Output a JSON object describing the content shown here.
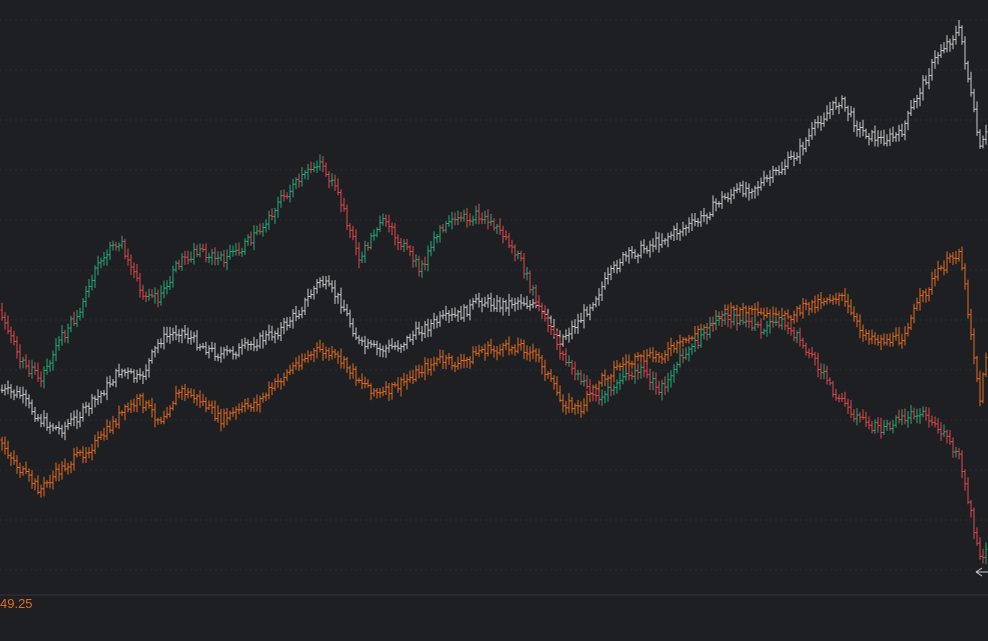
{
  "chart_data": {
    "type": "line",
    "style": "ohlc-bars",
    "grid": true,
    "legend": "none",
    "x": [
      0,
      20,
      40,
      60,
      80,
      100,
      120,
      140,
      160,
      180,
      200,
      220,
      240,
      260,
      280,
      300,
      320,
      340,
      360,
      380,
      400,
      420,
      440,
      460,
      480,
      500,
      520,
      540,
      560,
      580,
      600,
      620,
      640,
      660,
      680,
      700,
      720,
      740,
      760,
      780,
      800,
      820,
      840,
      860,
      880,
      900,
      920,
      940,
      960,
      980,
      988
    ],
    "series": [
      {
        "color": "#c9c9c9",
        "values": [
          390,
          395,
          420,
          430,
          415,
          395,
          370,
          380,
          340,
          330,
          345,
          355,
          350,
          340,
          330,
          310,
          280,
          300,
          345,
          350,
          345,
          330,
          320,
          315,
          300,
          305,
          300,
          310,
          340,
          320,
          290,
          260,
          250,
          240,
          230,
          220,
          200,
          190,
          185,
          170,
          150,
          120,
          100,
          130,
          140,
          135,
          90,
          50,
          30,
          150,
          130
        ]
      },
      {
        "color": "#e06b1e",
        "values": [
          440,
          470,
          490,
          470,
          455,
          440,
          415,
          400,
          420,
          390,
          400,
          420,
          410,
          400,
          380,
          360,
          350,
          360,
          380,
          395,
          385,
          370,
          360,
          365,
          350,
          350,
          345,
          360,
          400,
          410,
          380,
          365,
          360,
          355,
          345,
          330,
          315,
          310,
          315,
          320,
          310,
          300,
          295,
          330,
          340,
          340,
          300,
          270,
          250,
          400,
          340
        ]
      },
      {
        "color": "#d94848",
        "colors": [
          "#d94848",
          "#26a77a"
        ],
        "values": [
          310,
          360,
          380,
          340,
          310,
          260,
          240,
          290,
          300,
          260,
          250,
          260,
          250,
          230,
          200,
          180,
          160,
          200,
          260,
          220,
          240,
          270,
          230,
          220,
          215,
          230,
          260,
          310,
          350,
          380,
          400,
          380,
          370,
          390,
          360,
          340,
          315,
          320,
          330,
          320,
          340,
          370,
          400,
          420,
          430,
          420,
          410,
          430,
          460,
          560,
          550
        ]
      }
    ],
    "last_price_label": "49.25",
    "last_price_color": "#e06b1e"
  }
}
